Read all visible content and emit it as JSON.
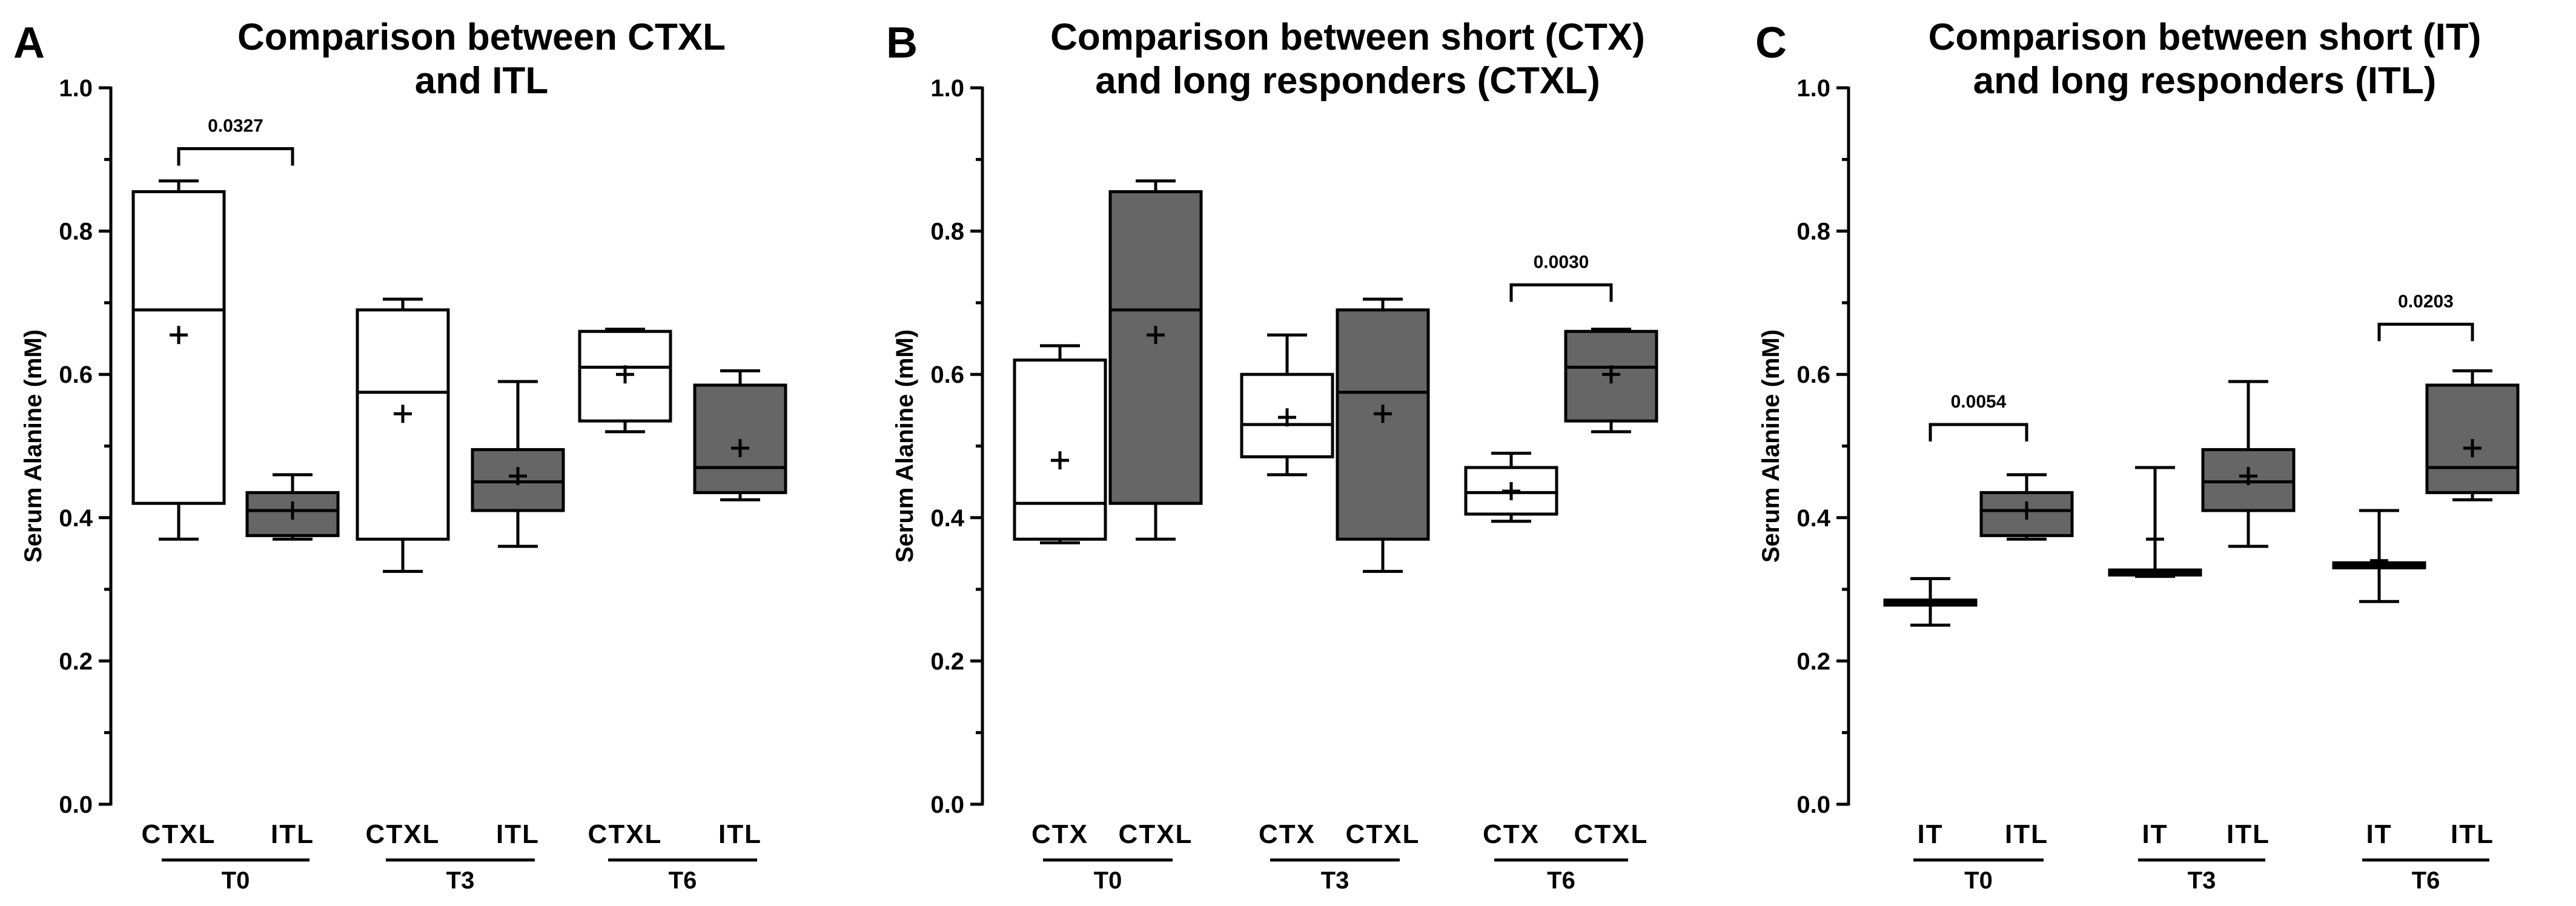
{
  "chart_data": [
    {
      "type": "box",
      "panel_label": "A",
      "title_lines": [
        "Comparison between CTXL",
        "and ITL"
      ],
      "ylabel": "Serum Alanine (mM)",
      "ylim": [
        0,
        1.0
      ],
      "yticks": [
        "0.0",
        "0.2",
        "0.4",
        "0.6",
        "0.8",
        "1.0"
      ],
      "colors": {
        "CTXL": "#ffffff",
        "ITL": "#666666"
      },
      "groups": [
        {
          "label": "T0",
          "boxes": [
            {
              "category": "CTXL",
              "min": 0.37,
              "q1": 0.42,
              "median": 0.69,
              "q3": 0.855,
              "max": 0.87,
              "mean": 0.655
            },
            {
              "category": "ITL",
              "min": 0.37,
              "q1": 0.375,
              "median": 0.41,
              "q3": 0.435,
              "max": 0.46,
              "mean": 0.41
            }
          ]
        },
        {
          "label": "T3",
          "boxes": [
            {
              "category": "CTXL",
              "min": 0.325,
              "q1": 0.37,
              "median": 0.575,
              "q3": 0.69,
              "max": 0.705,
              "mean": 0.545
            },
            {
              "category": "ITL",
              "min": 0.36,
              "q1": 0.41,
              "median": 0.45,
              "q3": 0.495,
              "max": 0.59,
              "mean": 0.458
            }
          ]
        },
        {
          "label": "T6",
          "boxes": [
            {
              "category": "CTXL",
              "min": 0.52,
              "q1": 0.535,
              "median": 0.61,
              "q3": 0.66,
              "max": 0.663,
              "mean": 0.6
            },
            {
              "category": "ITL",
              "min": 0.425,
              "q1": 0.435,
              "median": 0.47,
              "q3": 0.585,
              "max": 0.605,
              "mean": 0.497
            }
          ]
        }
      ],
      "annotations": [
        {
          "text": "0.0327",
          "group": 0,
          "y_bracket": 0.915
        }
      ]
    },
    {
      "type": "box",
      "panel_label": "B",
      "title_lines": [
        "Comparison between short (CTX)",
        "and long responders (CTXL)"
      ],
      "ylabel": "Serum Alanine (mM)",
      "ylim": [
        0,
        1.0
      ],
      "yticks": [
        "0.0",
        "0.2",
        "0.4",
        "0.6",
        "0.8",
        "1.0"
      ],
      "colors": {
        "CTX": "#ffffff",
        "CTXL": "#666666"
      },
      "groups": [
        {
          "label": "T0",
          "boxes": [
            {
              "category": "CTX",
              "min": 0.365,
              "q1": 0.37,
              "median": 0.42,
              "q3": 0.62,
              "max": 0.64,
              "mean": 0.48
            },
            {
              "category": "CTXL",
              "min": 0.37,
              "q1": 0.42,
              "median": 0.69,
              "q3": 0.855,
              "max": 0.87,
              "mean": 0.655
            }
          ]
        },
        {
          "label": "T3",
          "boxes": [
            {
              "category": "CTX",
              "min": 0.46,
              "q1": 0.485,
              "median": 0.53,
              "q3": 0.6,
              "max": 0.655,
              "mean": 0.54
            },
            {
              "category": "CTXL",
              "min": 0.325,
              "q1": 0.37,
              "median": 0.575,
              "q3": 0.69,
              "max": 0.705,
              "mean": 0.545
            }
          ]
        },
        {
          "label": "T6",
          "boxes": [
            {
              "category": "CTX",
              "min": 0.395,
              "q1": 0.405,
              "median": 0.435,
              "q3": 0.47,
              "max": 0.49,
              "mean": 0.437
            },
            {
              "category": "CTXL",
              "min": 0.52,
              "q1": 0.535,
              "median": 0.61,
              "q3": 0.66,
              "max": 0.663,
              "mean": 0.6
            }
          ]
        }
      ],
      "annotations": [
        {
          "text": "0.0030",
          "group": 2,
          "y_bracket": 0.725
        }
      ]
    },
    {
      "type": "box",
      "panel_label": "C",
      "title_lines": [
        "Comparison between short (IT)",
        "and long responders (ITL)"
      ],
      "ylabel": "Serum Alanine (mM)",
      "ylim": [
        0,
        1.0
      ],
      "yticks": [
        "0.0",
        "0.2",
        "0.4",
        "0.6",
        "0.8",
        "1.0"
      ],
      "colors": {
        "IT": "#ffffff",
        "ITL": "#666666"
      },
      "groups": [
        {
          "label": "T0",
          "boxes": [
            {
              "category": "IT",
              "min": 0.25,
              "q1": 0.278,
              "median": 0.282,
              "q3": 0.285,
              "max": 0.315,
              "mean": 0.282
            },
            {
              "category": "ITL",
              "min": 0.37,
              "q1": 0.375,
              "median": 0.41,
              "q3": 0.435,
              "max": 0.46,
              "mean": 0.41
            }
          ]
        },
        {
          "label": "T3",
          "boxes": [
            {
              "category": "IT",
              "min": 0.318,
              "q1": 0.32,
              "median": 0.323,
              "q3": 0.327,
              "max": 0.47,
              "mean": 0.37
            },
            {
              "category": "ITL",
              "min": 0.36,
              "q1": 0.41,
              "median": 0.45,
              "q3": 0.495,
              "max": 0.59,
              "mean": 0.458
            }
          ]
        },
        {
          "label": "T6",
          "boxes": [
            {
              "category": "IT",
              "min": 0.283,
              "q1": 0.33,
              "median": 0.333,
              "q3": 0.337,
              "max": 0.41,
              "mean": 0.34
            },
            {
              "category": "ITL",
              "min": 0.425,
              "q1": 0.435,
              "median": 0.47,
              "q3": 0.585,
              "max": 0.605,
              "mean": 0.497
            }
          ]
        }
      ],
      "annotations": [
        {
          "text": "0.0054",
          "group": 0,
          "y_bracket": 0.53
        },
        {
          "text": "0.0203",
          "group": 2,
          "y_bracket": 0.67
        }
      ]
    }
  ]
}
